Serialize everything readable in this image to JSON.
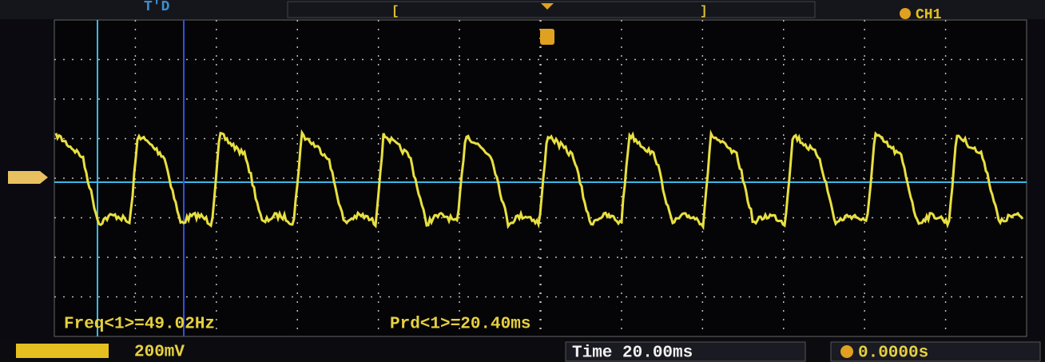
{
  "top_bar": {
    "trigger_status": "T'D",
    "channel": "CH1"
  },
  "measurements": {
    "frequency": "Freq<1>=49.02Hz",
    "period": "Prd<1>=20.40ms"
  },
  "bottom_bar": {
    "volts_div": "200mV",
    "timebase": "Time 20.00ms",
    "trigger_offset": "0.0000s"
  }
}
